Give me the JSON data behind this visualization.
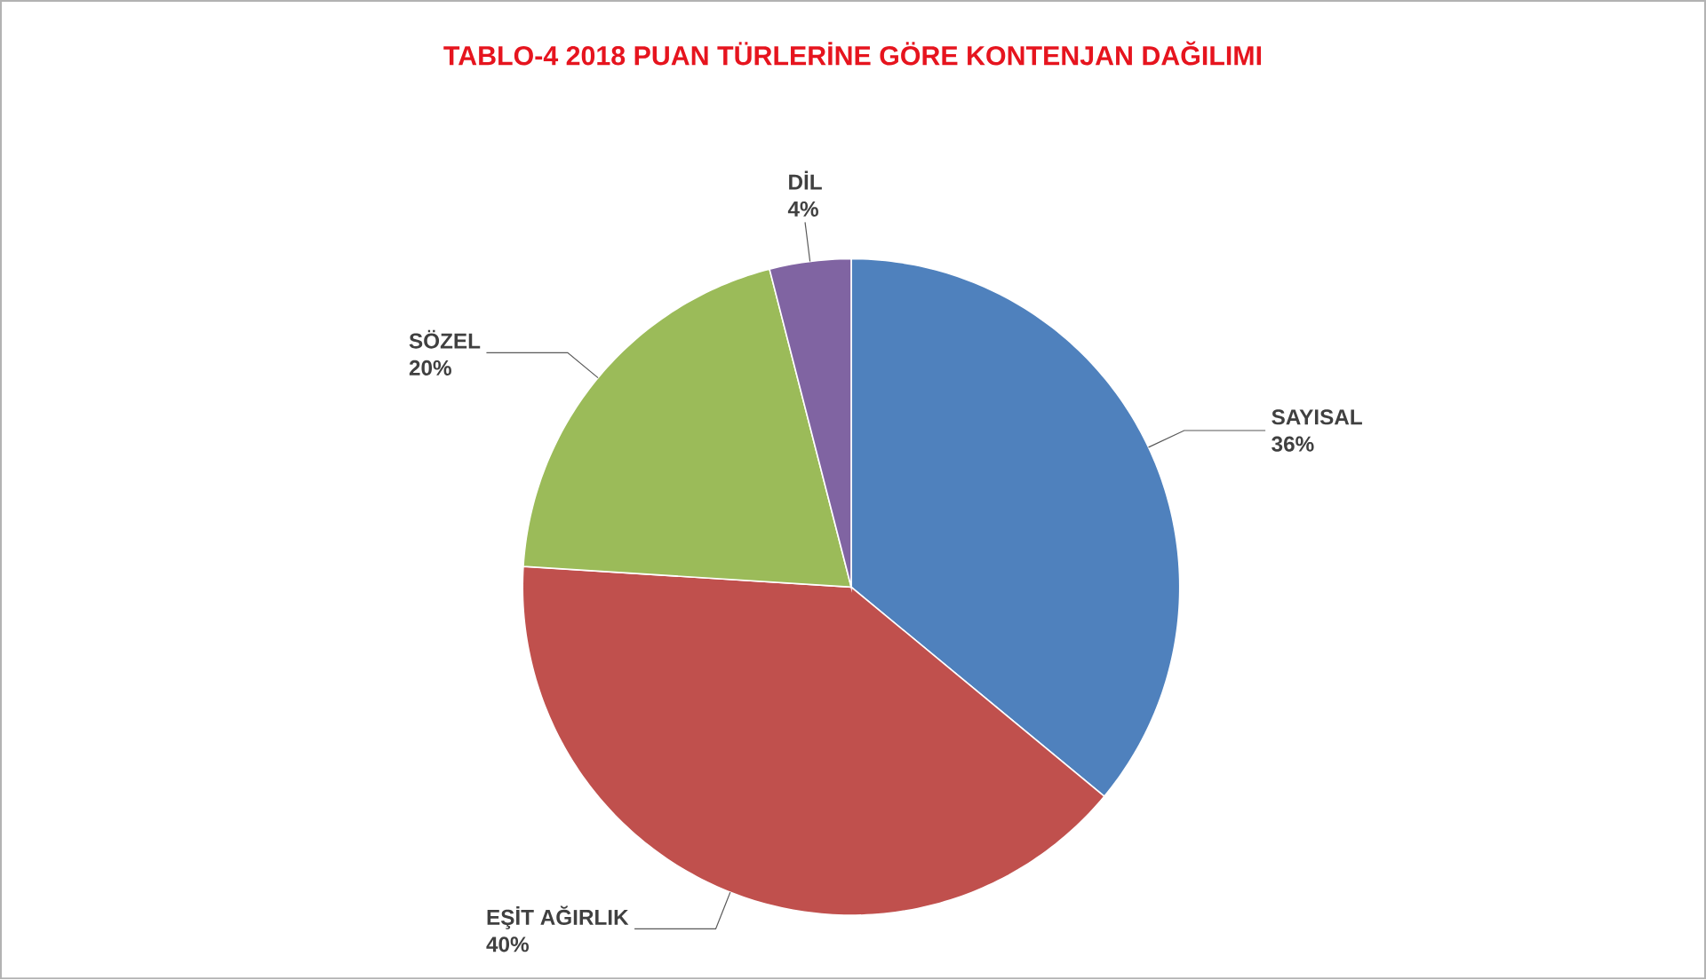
{
  "chart_data": {
    "type": "pie",
    "title": "TABLO-4 2018 PUAN TÜRLERİNE GÖRE KONTENJAN DAĞILIMI",
    "categories": [
      "SAYISAL",
      "EŞİT AĞIRLIK",
      "SÖZEL",
      "DİL"
    ],
    "values": [
      36,
      40,
      20,
      4
    ],
    "value_labels": [
      "36%",
      "40%",
      "20%",
      "4%"
    ],
    "colors": [
      "#4f81bd",
      "#c0504d",
      "#9bbb59",
      "#8064a2"
    ]
  }
}
